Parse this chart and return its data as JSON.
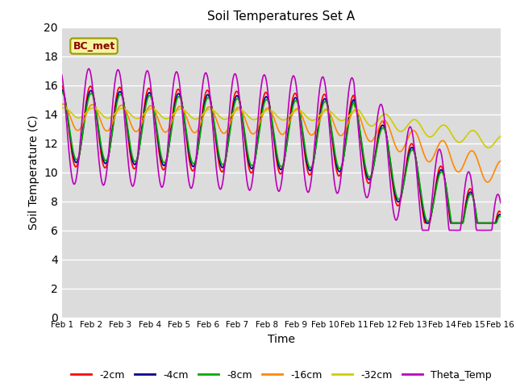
{
  "title": "Soil Temperatures Set A",
  "xlabel": "Time",
  "ylabel": "Soil Temperature (C)",
  "ylim": [
    0,
    20
  ],
  "yticks": [
    0,
    2,
    4,
    6,
    8,
    10,
    12,
    14,
    16,
    18,
    20
  ],
  "xtick_labels": [
    "Feb 1",
    "Feb 2",
    "Feb 3",
    "Feb 4",
    "Feb 5",
    "Feb 6",
    "Feb 7",
    "Feb 8",
    "Feb 9",
    "Feb 10",
    "Feb 11",
    "Feb 12",
    "Feb 13",
    "Feb 14",
    "Feb 15",
    "Feb 16"
  ],
  "annotation_text": "BC_met",
  "background_color": "#dcdcdc",
  "figure_bg": "#ffffff",
  "series": {
    "-2cm": {
      "color": "#ff0000",
      "lw": 1.2
    },
    "-4cm": {
      "color": "#00008b",
      "lw": 1.2
    },
    "-8cm": {
      "color": "#00aa00",
      "lw": 1.2
    },
    "-16cm": {
      "color": "#ff8800",
      "lw": 1.2
    },
    "-32cm": {
      "color": "#cccc00",
      "lw": 1.2
    },
    "Theta_Temp": {
      "color": "#bb00bb",
      "lw": 1.2
    }
  },
  "legend_order": [
    "-2cm",
    "-4cm",
    "-8cm",
    "-16cm",
    "-32cm",
    "Theta_Temp"
  ]
}
